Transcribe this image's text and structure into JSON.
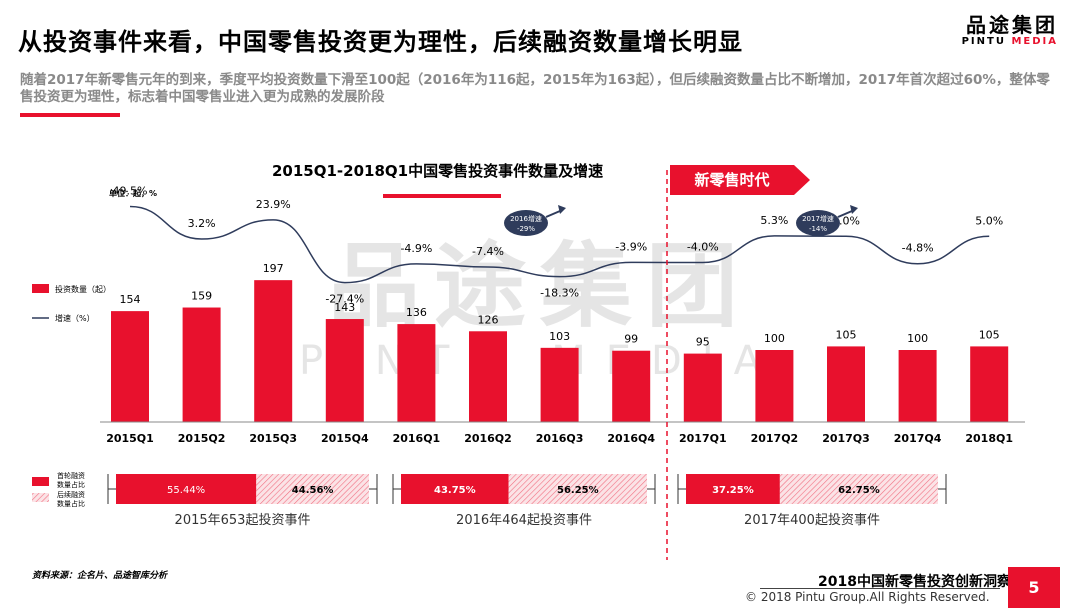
{
  "page": {
    "title": "从投资事件来看，中国零售投资更为理性，后续融资数量增长明显",
    "subtitle": "随着2017年新零售元年的到来，季度平均投资数量下滑至100起（2016年为116起，2015年为163起），但后续融资数量占比不断增加，2017年首次超过60%，整体零售投资更为理性，标志着中国零售业进入更为成熟的发展阶段",
    "brand_cn": "品途集团",
    "brand_en_1": "PINTU",
    "brand_en_2": "MEDIA",
    "watermark_cn": "品途集团",
    "watermark_en": "PINTU MEDIA",
    "source": "资料来源：企名片、品途智库分析",
    "report_name": "2018中国新零售投资创新洞察",
    "copyright": "© 2018 Pintu Group.All Rights Reserved.",
    "page_number": "5",
    "era_label": "新零售时代"
  },
  "colors": {
    "accent": "#e8112d",
    "line": "#2f3c5c",
    "hatch": "#f2b8c0"
  },
  "chart_data": [
    {
      "type": "bar",
      "title": "2015Q1-2018Q1中国零售投资事件数量及增速",
      "unit_label": "单位：起，%",
      "categories": [
        "2015Q1",
        "2015Q2",
        "2015Q3",
        "2015Q4",
        "2016Q1",
        "2016Q2",
        "2016Q3",
        "2016Q4",
        "2017Q1",
        "2017Q2",
        "2017Q3",
        "2017Q4",
        "2018Q1"
      ],
      "series": [
        {
          "name": "投资数量（起）",
          "type": "bar",
          "values": [
            154,
            159,
            197,
            143,
            136,
            126,
            103,
            99,
            95,
            100,
            105,
            100,
            105
          ]
        },
        {
          "name": "增速（%）",
          "type": "line",
          "values": [
            49.5,
            3.2,
            23.9,
            -27.4,
            -4.9,
            -7.4,
            -18.3,
            -3.9,
            -4.0,
            5.3,
            5.0,
            -4.8,
            5.0
          ],
          "labels": [
            "49.5%",
            "3.2%",
            "23.9%",
            "-27.4%",
            "-4.9%",
            "-7.4%",
            "-18.3%",
            "-3.9%",
            "-4.0%",
            "5.3%",
            "5.0%",
            "-4.8%",
            "5.0%"
          ]
        }
      ],
      "annotations": [
        {
          "line1": "2016增速",
          "line2": "-29%"
        },
        {
          "line1": "2017增速",
          "line2": "-14%"
        }
      ]
    },
    {
      "type": "bar",
      "stacked": true,
      "orientation": "horizontal",
      "legend": [
        "首轮融资数量占比",
        "后续融资数量占比"
      ],
      "groups": [
        {
          "label": "2015年653起投资事件",
          "first": 55.44,
          "follow": 44.56,
          "first_label": "55.44%",
          "follow_label": "44.56%"
        },
        {
          "label": "2016年464起投资事件",
          "first": 43.75,
          "follow": 56.25,
          "first_label": "43.75%",
          "follow_label": "56.25%"
        },
        {
          "label": "2017年400起投资事件",
          "first": 37.25,
          "follow": 62.75,
          "first_label": "37.25%",
          "follow_label": "62.75%"
        }
      ]
    }
  ]
}
